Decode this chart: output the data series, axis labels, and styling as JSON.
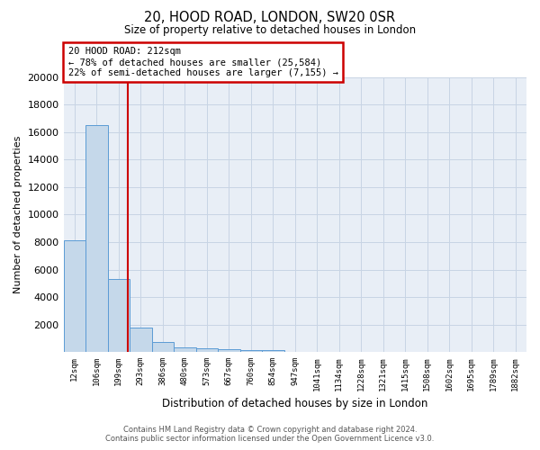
{
  "title1": "20, HOOD ROAD, LONDON, SW20 0SR",
  "title2": "Size of property relative to detached houses in London",
  "xlabel": "Distribution of detached houses by size in London",
  "ylabel": "Number of detached properties",
  "footer1": "Contains HM Land Registry data © Crown copyright and database right 2024.",
  "footer2": "Contains public sector information licensed under the Open Government Licence v3.0.",
  "annotation_title": "20 HOOD ROAD: 212sqm",
  "annotation_line1": "← 78% of detached houses are smaller (25,584)",
  "annotation_line2": "22% of semi-detached houses are larger (7,155) →",
  "bar_color": "#c5d8ea",
  "bar_edge_color": "#5b9bd5",
  "vline_color": "#cc0000",
  "annotation_box_edge_color": "#cc0000",
  "grid_color": "#c8d4e4",
  "bg_color": "#e8eef6",
  "categories": [
    "12sqm",
    "106sqm",
    "199sqm",
    "293sqm",
    "386sqm",
    "480sqm",
    "573sqm",
    "667sqm",
    "760sqm",
    "854sqm",
    "947sqm",
    "1041sqm",
    "1134sqm",
    "1228sqm",
    "1321sqm",
    "1415sqm",
    "1508sqm",
    "1602sqm",
    "1695sqm",
    "1789sqm",
    "1882sqm"
  ],
  "values": [
    8100,
    16500,
    5300,
    1750,
    700,
    350,
    270,
    200,
    170,
    130,
    0,
    0,
    0,
    0,
    0,
    0,
    0,
    0,
    0,
    0,
    0
  ],
  "ylim": [
    0,
    20000
  ],
  "yticks": [
    0,
    2000,
    4000,
    6000,
    8000,
    10000,
    12000,
    14000,
    16000,
    18000,
    20000
  ],
  "vline_x_index": 2.42
}
